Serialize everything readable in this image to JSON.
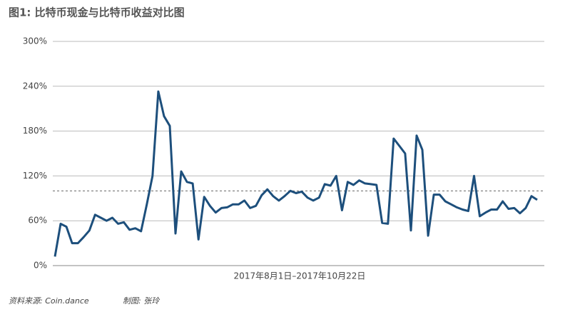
{
  "chart_data": {
    "type": "line",
    "title": "图1: 比特币现金与比特币收益对比图",
    "xlabel": "2017年8月1日–2017年10月22日",
    "source": "资料来源: Coin.dance",
    "credit": "制图: 张玲",
    "series": [
      {
        "color": "#1d4f7c",
        "values": [
          12,
          56,
          52,
          30,
          30,
          38,
          47,
          68,
          64,
          60,
          64,
          56,
          58,
          48,
          50,
          46,
          82,
          120,
          233,
          200,
          187,
          43,
          126,
          112,
          110,
          35,
          92,
          80,
          71,
          77,
          78,
          82,
          82,
          87,
          77,
          80,
          94,
          102,
          93,
          87,
          93,
          100,
          97,
          99,
          91,
          87,
          91,
          109,
          107,
          120,
          74,
          112,
          108,
          114,
          110,
          109,
          108,
          57,
          56,
          170,
          160,
          150,
          47,
          174,
          155,
          40,
          95,
          95,
          86,
          82,
          78,
          75,
          73,
          120,
          66,
          71,
          75,
          75,
          86,
          76,
          77,
          70,
          77,
          93,
          88
        ]
      }
    ],
    "ylim": [
      0,
      300
    ],
    "yticks": [
      {
        "value": 0,
        "label": "0%"
      },
      {
        "value": 60,
        "label": "60%"
      },
      {
        "value": 120,
        "label": "120%"
      },
      {
        "value": 180,
        "label": "180%"
      },
      {
        "value": 240,
        "label": "240%"
      },
      {
        "value": 300,
        "label": "300%"
      }
    ],
    "reference_line": 100,
    "grid": true
  }
}
